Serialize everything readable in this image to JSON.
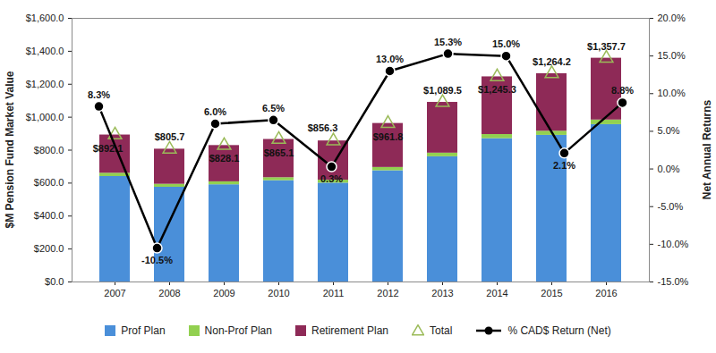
{
  "chart_data": {
    "type": "bar",
    "stacked": true,
    "grid": false,
    "legend": "bottom",
    "y_label": "$M Pension Fund Market Value",
    "y2_label": "Net Annual Returns",
    "categories": [
      "2007",
      "2008",
      "2009",
      "2010",
      "2011",
      "2012",
      "2013",
      "2014",
      "2015",
      "2016"
    ],
    "ylim": [
      0,
      1600
    ],
    "yticks": [
      {
        "value": 0,
        "label": "$0.0"
      },
      {
        "value": 200,
        "label": "$200.0"
      },
      {
        "value": 400,
        "label": "$400.0"
      },
      {
        "value": 600,
        "label": "$600.0"
      },
      {
        "value": 800,
        "label": "$800.0"
      },
      {
        "value": 1000,
        "label": "$1,000.0"
      },
      {
        "value": 1200,
        "label": "$1,200.0"
      },
      {
        "value": 1400,
        "label": "$1,400.0"
      },
      {
        "value": 1600,
        "label": "$1,600.0"
      }
    ],
    "y2lim": [
      -15,
      20
    ],
    "y2ticks": [
      {
        "value": -15,
        "label": "-15.0%"
      },
      {
        "value": -10,
        "label": "-10.0%"
      },
      {
        "value": -5,
        "label": "-5.0%"
      },
      {
        "value": 0,
        "label": "0.0%"
      },
      {
        "value": 5,
        "label": "5.0%"
      },
      {
        "value": 10,
        "label": "10.0%"
      },
      {
        "value": 15,
        "label": "15.0%"
      },
      {
        "value": 20,
        "label": "20.0%"
      }
    ],
    "series": [
      {
        "name": "Prof Plan",
        "type": "bar",
        "color": "#4a8fd9",
        "values": [
          640,
          575,
          590,
          615,
          600,
          675,
          760,
          870,
          890,
          955
        ]
      },
      {
        "name": "Non-Prof Plan",
        "type": "bar",
        "color": "#92d050",
        "values": [
          20,
          18,
          18,
          18,
          18,
          20,
          22,
          25,
          25,
          28
        ]
      },
      {
        "name": "Retirement Plan",
        "type": "bar",
        "color": "#8e2a57",
        "values": [
          232,
          213,
          220,
          232,
          238,
          267,
          308,
          350,
          349,
          375
        ]
      },
      {
        "name": "Total",
        "type": "scatter",
        "marker": "triangle",
        "color": "#9bbb59",
        "data_labels": true,
        "values": [
          892.1,
          805.7,
          828.1,
          865.1,
          856.3,
          961.8,
          1089.5,
          1245.3,
          1264.2,
          1357.7
        ],
        "value_labels": [
          "$892.1",
          "$805.7",
          "$828.1",
          "$865.1",
          "$856.3",
          "$961.8",
          "$1,089.5",
          "$1,245.3",
          "$1,264.2",
          "$1,357.7"
        ]
      },
      {
        "name": "% CAD$ Return (Net)",
        "type": "line",
        "axis": "y2",
        "marker": "circle",
        "color": "#000000",
        "data_labels": true,
        "values": [
          8.3,
          -10.5,
          6.0,
          6.5,
          0.3,
          13.0,
          15.3,
          15.0,
          2.1,
          8.8
        ],
        "value_labels": [
          "8.3%",
          "-10.5%",
          "6.0%",
          "6.5%",
          "0.3%",
          "13.0%",
          "15.3%",
          "15.0%",
          "2.1%",
          "8.8%"
        ]
      }
    ]
  }
}
